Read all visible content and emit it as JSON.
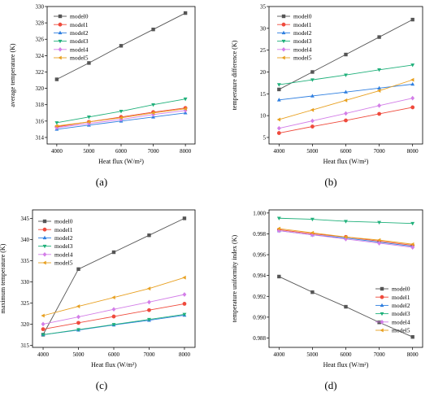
{
  "chart_data": [
    {
      "panel": "(a)",
      "type": "line",
      "xlabel": "Heat flux (W/m²)",
      "ylabel": "average temperature (K)",
      "x": [
        4000,
        5000,
        6000,
        7000,
        8000
      ],
      "xlim": [
        3700,
        8300
      ],
      "xticks": [
        4000,
        5000,
        6000,
        7000,
        8000
      ],
      "ylim": [
        313.2,
        330
      ],
      "yticks": [
        314,
        316,
        318,
        320,
        322,
        324,
        326,
        328,
        330
      ],
      "legend_position": "top-left",
      "series": [
        {
          "name": "model0",
          "values": [
            321.1,
            323.1,
            325.2,
            327.2,
            329.2
          ]
        },
        {
          "name": "model1",
          "values": [
            315.3,
            315.9,
            316.5,
            317.1,
            317.6
          ]
        },
        {
          "name": "model2",
          "values": [
            315.0,
            315.5,
            316.0,
            316.5,
            317.0
          ]
        },
        {
          "name": "model3",
          "values": [
            315.8,
            316.5,
            317.2,
            318.0,
            318.7
          ]
        },
        {
          "name": "model4",
          "values": [
            315.2,
            315.7,
            316.2,
            316.8,
            317.3
          ]
        },
        {
          "name": "model5",
          "values": [
            315.4,
            315.9,
            316.4,
            317.0,
            317.5
          ]
        }
      ]
    },
    {
      "panel": "(b)",
      "type": "line",
      "xlabel": "Heat flux (W/m²)",
      "ylabel": "temperature difference (K)",
      "x": [
        4000,
        5000,
        6000,
        7000,
        8000
      ],
      "xlim": [
        3700,
        8300
      ],
      "xticks": [
        4000,
        5000,
        6000,
        7000,
        8000
      ],
      "ylim": [
        3.5,
        35
      ],
      "yticks": [
        5,
        10,
        15,
        20,
        25,
        30,
        35
      ],
      "legend_position": "top-left",
      "series": [
        {
          "name": "model0",
          "values": [
            16.0,
            20.0,
            24.0,
            28.0,
            32.0
          ]
        },
        {
          "name": "model1",
          "values": [
            6.0,
            7.5,
            8.9,
            10.4,
            11.9
          ]
        },
        {
          "name": "model2",
          "values": [
            13.6,
            14.5,
            15.4,
            16.3,
            17.2
          ]
        },
        {
          "name": "model3",
          "values": [
            17.1,
            18.2,
            19.3,
            20.5,
            21.6
          ]
        },
        {
          "name": "model4",
          "values": [
            7.1,
            8.8,
            10.5,
            12.3,
            14.0
          ]
        },
        {
          "name": "model5",
          "values": [
            9.1,
            11.3,
            13.5,
            15.7,
            18.2
          ]
        }
      ]
    },
    {
      "panel": "(c)",
      "type": "line",
      "xlabel": "Heat flux (W/m²)",
      "ylabel": "maximum temperature (K)",
      "x": [
        4000,
        5000,
        6000,
        7000,
        8000
      ],
      "xlim": [
        3700,
        8300
      ],
      "xticks": [
        4000,
        5000,
        6000,
        7000,
        8000
      ],
      "ylim": [
        314.5,
        347
      ],
      "yticks": [
        315,
        320,
        325,
        330,
        335,
        340,
        345
      ],
      "legend_position": "top-left",
      "series": [
        {
          "name": "model0",
          "values": [
            317.5,
            333.0,
            337.0,
            341.0,
            345.0
          ]
        },
        {
          "name": "model1",
          "values": [
            318.8,
            320.3,
            321.8,
            323.3,
            324.8
          ]
        },
        {
          "name": "model2",
          "values": [
            317.5,
            318.6,
            319.8,
            320.9,
            322.1
          ]
        },
        {
          "name": "model3",
          "values": [
            317.5,
            318.7,
            319.9,
            321.1,
            322.3
          ]
        },
        {
          "name": "model4",
          "values": [
            320.0,
            321.7,
            323.5,
            325.2,
            327.0
          ]
        },
        {
          "name": "model5",
          "values": [
            322.0,
            324.2,
            326.3,
            328.4,
            331.0
          ]
        }
      ]
    },
    {
      "panel": "(d)",
      "type": "line",
      "xlabel": "Heat flux (W/m²)",
      "ylabel": "temperature uniformity index (K)",
      "x": [
        4000,
        5000,
        6000,
        7000,
        8000
      ],
      "xlim": [
        3700,
        8300
      ],
      "xticks": [
        4000,
        5000,
        6000,
        7000,
        8000
      ],
      "ylim": [
        0.9871,
        1.0003
      ],
      "yticks": [
        0.988,
        0.99,
        0.992,
        0.994,
        0.996,
        0.998,
        1.0
      ],
      "legend_position": "bottom-right",
      "series": [
        {
          "name": "model0",
          "values": [
            0.9939,
            0.9924,
            0.991,
            0.9895,
            0.9881
          ]
        },
        {
          "name": "model1",
          "values": [
            0.9984,
            0.998,
            0.9977,
            0.9973,
            0.9969
          ]
        },
        {
          "name": "model2",
          "values": [
            0.9983,
            0.9979,
            0.9976,
            0.9972,
            0.9968
          ]
        },
        {
          "name": "model3",
          "values": [
            0.9995,
            0.9994,
            0.9992,
            0.9991,
            0.999
          ]
        },
        {
          "name": "model4",
          "values": [
            0.9983,
            0.9979,
            0.9975,
            0.9971,
            0.9967
          ]
        },
        {
          "name": "model5",
          "values": [
            0.9985,
            0.9981,
            0.9977,
            0.9974,
            0.997
          ]
        }
      ]
    }
  ],
  "style": {
    "colors": [
      "#555555",
      "#ef4a3c",
      "#2f7fe0",
      "#1fb07a",
      "#d37ee8",
      "#e8a020"
    ],
    "markers": [
      "square",
      "circle",
      "triangle-up",
      "triangle-down",
      "diamond",
      "triangle-left"
    ]
  }
}
